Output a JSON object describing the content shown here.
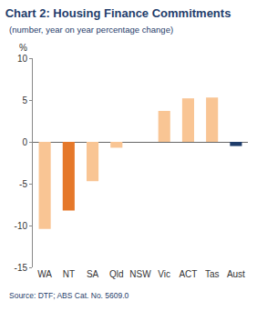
{
  "chart_data": {
    "type": "bar",
    "title": "Chart 2: Housing Finance Commitments",
    "subtitle": "(number, year on year percentage change)",
    "y_label": "%",
    "source": "Source: DTF; ABS Cat. No. 5609.0",
    "categories": [
      "WA",
      "NT",
      "SA",
      "Qld",
      "NSW",
      "Vic",
      "ACT",
      "Tas",
      "Aust"
    ],
    "values": [
      -10.4,
      -8.2,
      -4.7,
      -0.7,
      0,
      3.7,
      5.2,
      5.3,
      -0.5
    ],
    "colors": [
      "#f9c594",
      "#e5782a",
      "#f9c594",
      "#f9c594",
      "#f9c594",
      "#f9c594",
      "#f9c594",
      "#f9c594",
      "#1f3d6b"
    ],
    "ylim": [
      -15,
      10
    ],
    "yticks": [
      -15,
      -10,
      -5,
      0,
      5,
      10
    ],
    "grid": false
  }
}
